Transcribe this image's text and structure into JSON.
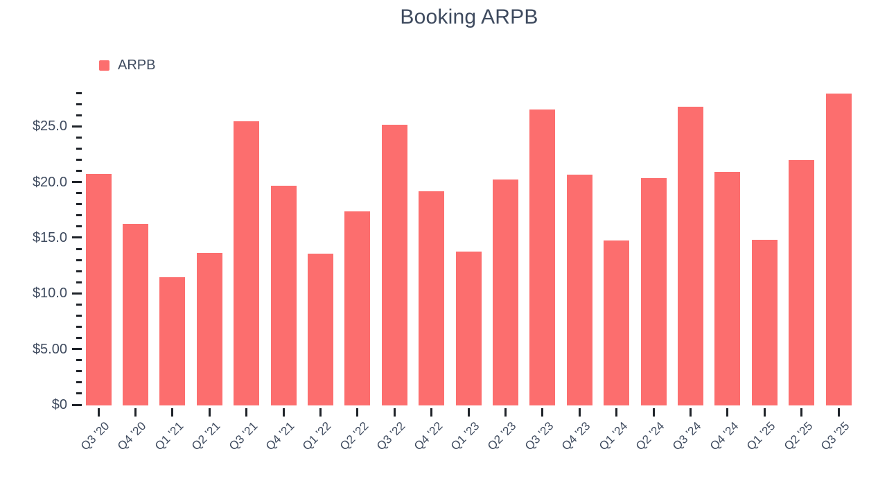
{
  "title": "Booking ARPB",
  "legend": {
    "label": "ARPB",
    "swatch_color": "#FC6E6E"
  },
  "colors": {
    "bar": "#FC6E6E",
    "text": "#3E4A5E",
    "tick": "#1F2329",
    "background": "#FFFFFF"
  },
  "chart_data": {
    "type": "bar",
    "title": "Booking ARPB",
    "series_name": "ARPB",
    "categories": [
      "Q3 '20",
      "Q4 '20",
      "Q1 '21",
      "Q2 '21",
      "Q3 '21",
      "Q4 '21",
      "Q1 '22",
      "Q2 '22",
      "Q3 '22",
      "Q4 '22",
      "Q1 '23",
      "Q2 '23",
      "Q3 '23",
      "Q4 '23",
      "Q1 '24",
      "Q2 '24",
      "Q3 '24",
      "Q4 '24",
      "Q1 '25",
      "Q2 '25",
      "Q3 '25"
    ],
    "values": [
      20.8,
      16.3,
      11.5,
      13.7,
      25.5,
      19.7,
      13.6,
      17.4,
      25.2,
      19.2,
      13.8,
      20.3,
      26.6,
      20.7,
      14.8,
      20.4,
      26.8,
      21.0,
      14.9,
      22.0,
      28.0
    ],
    "bar_color": "#FC6E6E",
    "xlabel": "",
    "ylabel": "",
    "y_axis": {
      "major_tick_values": [
        0,
        5,
        10,
        15,
        20,
        25
      ],
      "major_tick_labels": [
        "$0",
        "$5.00",
        "$10.0",
        "$15.0",
        "$20.0",
        "$25.0"
      ],
      "minor_tick_step": 1,
      "max_tick": 28,
      "ylim": [
        0,
        28.6
      ]
    },
    "grid": false,
    "legend_position": "top-left"
  }
}
